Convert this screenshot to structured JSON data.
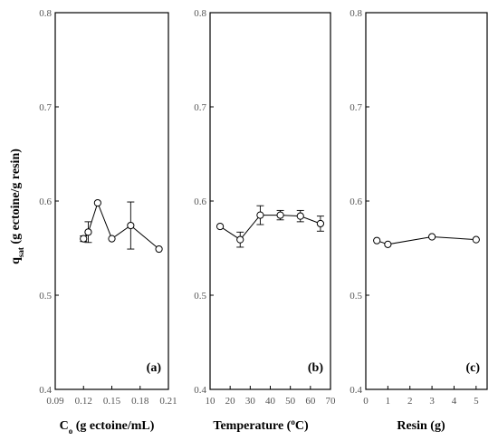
{
  "chart_data": [
    {
      "type": "line",
      "panel_label": "(a)",
      "xlabel": "C",
      "xlabel_sub": "o",
      "xlabel_rest": " (g ectoine/mL)",
      "ylabel": "q",
      "ylabel_sub": "sat",
      "ylabel_rest": " (g ectoine/g resin)",
      "xlim": [
        0.09,
        0.21
      ],
      "ylim": [
        0.4,
        0.8
      ],
      "xticks": [
        "0.09",
        "0.12",
        "0.15",
        "0.18",
        "0.21"
      ],
      "yticks": [
        "0.4",
        "0.5",
        "0.6",
        "0.7",
        "0.8"
      ],
      "x": [
        0.12,
        0.125,
        0.135,
        0.15,
        0.17,
        0.2
      ],
      "y": [
        0.56,
        0.567,
        0.598,
        0.56,
        0.574,
        0.549
      ],
      "err": [
        0.003,
        0.011,
        0,
        0,
        0.025,
        0
      ]
    },
    {
      "type": "line",
      "panel_label": "(b)",
      "xlabel": "Temperature (",
      "xlabel_sup": "o",
      "xlabel_rest": "C)",
      "xlim": [
        10,
        70
      ],
      "ylim": [
        0.4,
        0.8
      ],
      "xticks": [
        "10",
        "20",
        "30",
        "40",
        "50",
        "60",
        "70"
      ],
      "yticks": [
        "0.4",
        "0.5",
        "0.6",
        "0.7",
        "0.8"
      ],
      "x": [
        15,
        25,
        35,
        45,
        55,
        65
      ],
      "y": [
        0.573,
        0.559,
        0.585,
        0.585,
        0.584,
        0.576
      ],
      "err": [
        0,
        0.008,
        0.01,
        0.005,
        0.006,
        0.008
      ]
    },
    {
      "type": "line",
      "panel_label": "(c)",
      "xlabel": "Resin (g)",
      "xlim": [
        0,
        5.5
      ],
      "ylim": [
        0.4,
        0.8
      ],
      "xticks": [
        "0",
        "1",
        "2",
        "3",
        "4",
        "5"
      ],
      "yticks": [
        "0.4",
        "0.5",
        "0.6",
        "0.7",
        "0.8"
      ],
      "x": [
        0.5,
        1,
        3,
        5
      ],
      "y": [
        0.558,
        0.554,
        0.562,
        0.559
      ],
      "err": [
        0,
        0,
        0,
        0
      ]
    }
  ]
}
